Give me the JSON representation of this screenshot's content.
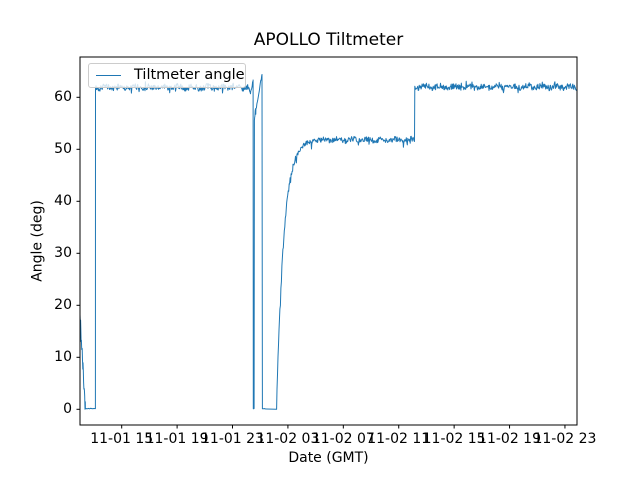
{
  "figure": {
    "title": "APOLLO Tiltmeter"
  },
  "axes": {
    "xlabel": "Date (GMT)",
    "ylabel": "Angle (deg)"
  },
  "legend": {
    "label": "Tiltmeter angle",
    "position": "upper left"
  },
  "chart_data": {
    "type": "line",
    "title": "APOLLO Tiltmeter",
    "xlabel": "Date (GMT)",
    "ylabel": "Angle (deg)",
    "legend_entries": [
      "Tiltmeter angle"
    ],
    "legend_position": "upper left",
    "grid": false,
    "line_color": "#1f77b4",
    "text_color": "#000000",
    "spine_color": "#000000",
    "x_unit": "hours since 11-01 00:00 GMT",
    "xlim": [
      11.99,
      47.87
    ],
    "ylim": [
      -3.02,
      67.75
    ],
    "y_ticks": [
      0,
      10,
      20,
      30,
      40,
      50,
      60
    ],
    "x_ticks": [
      {
        "t": 15,
        "label": "11-01 15"
      },
      {
        "t": 19,
        "label": "11-01 19"
      },
      {
        "t": 23,
        "label": "11-01 23"
      },
      {
        "t": 27,
        "label": "11-02 03"
      },
      {
        "t": 31,
        "label": "11-02 07"
      },
      {
        "t": 35,
        "label": "11-02 11"
      },
      {
        "t": 39,
        "label": "11-02 15"
      },
      {
        "t": 43,
        "label": "11-02 19"
      },
      {
        "t": 47,
        "label": "11-02 23"
      }
    ],
    "segments": [
      {
        "type": "ramp",
        "t0": 11.99,
        "t1": 12.37,
        "from": 17.8,
        "to": 0.3,
        "noise": 1.7,
        "dt": 0.02
      },
      {
        "type": "flat",
        "t0": 12.38,
        "t1": 13.1,
        "value": 0.15,
        "noise": 0.05
      },
      {
        "type": "noisy_flat",
        "t0": 13.11,
        "t1": 24.12,
        "value": 61.9,
        "noise": 0.55
      },
      {
        "type": "ramp",
        "t0": 24.13,
        "t1": 24.3,
        "from": 61.9,
        "to": 60.9,
        "noise": 0.35
      },
      {
        "type": "ramp",
        "t0": 24.31,
        "t1": 24.49,
        "from": 60.9,
        "to": 63.3,
        "noise": 0.3
      },
      {
        "type": "flat",
        "t0": 24.5,
        "t1": 24.56,
        "value": 0.1,
        "noise": 0.05
      },
      {
        "type": "ramp",
        "t0": 24.58,
        "t1": 24.68,
        "from": 55.5,
        "to": 57.5,
        "noise": 0.9,
        "dt": 0.02
      },
      {
        "type": "ramp",
        "t0": 24.69,
        "t1": 25.13,
        "from": 57.5,
        "to": 64.4,
        "noise": 0.4
      },
      {
        "type": "flat",
        "t0": 25.16,
        "t1": 25.45,
        "value": 0.1,
        "noise": 0.05
      },
      {
        "type": "exp_rise",
        "t0": 26.18,
        "t1": 28.75,
        "from": 0.2,
        "to": 52.0,
        "tau": 0.52,
        "noise": 0.45
      },
      {
        "type": "noisy_flat",
        "t0": 28.76,
        "t1": 36.14,
        "value": 51.8,
        "noise": 0.5
      },
      {
        "type": "noisy_flat",
        "t0": 36.16,
        "t1": 47.87,
        "value": 62.0,
        "noise": 0.55
      }
    ]
  }
}
